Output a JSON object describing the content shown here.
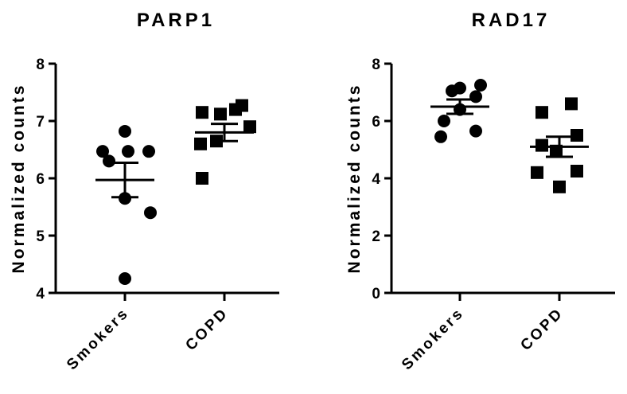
{
  "chart_data": [
    {
      "type": "scatter",
      "title": "PARP1",
      "xlabel": "",
      "ylabel": "Normalized counts",
      "ylim": [
        4,
        8
      ],
      "yticks": [
        4,
        5,
        6,
        7,
        8
      ],
      "categories": [
        "Smokers",
        "COPD"
      ],
      "series": [
        {
          "marker": "circle",
          "values": [
            4.25,
            5.4,
            5.65,
            6.3,
            6.47,
            6.47,
            6.47,
            6.82
          ],
          "mean": 5.97,
          "sem": 0.3
        },
        {
          "marker": "square",
          "values": [
            6.0,
            6.6,
            6.65,
            6.9,
            7.12,
            7.15,
            7.2,
            7.27
          ],
          "mean": 6.8,
          "sem": 0.15
        }
      ],
      "grid": false,
      "legend": "none"
    },
    {
      "type": "scatter",
      "title": "RAD17",
      "xlabel": "",
      "ylabel": "Normalized counts",
      "ylim": [
        0,
        8
      ],
      "yticks": [
        0,
        2,
        4,
        6,
        8
      ],
      "categories": [
        "Smokers",
        "COPD"
      ],
      "series": [
        {
          "marker": "circle",
          "values": [
            5.45,
            5.65,
            6.0,
            6.4,
            6.85,
            7.05,
            7.15,
            7.25
          ],
          "mean": 6.5,
          "sem": 0.25
        },
        {
          "marker": "square",
          "values": [
            3.7,
            4.2,
            4.25,
            4.95,
            5.15,
            5.5,
            6.3,
            6.6
          ],
          "mean": 5.1,
          "sem": 0.35
        }
      ],
      "grid": false,
      "legend": "none"
    }
  ]
}
